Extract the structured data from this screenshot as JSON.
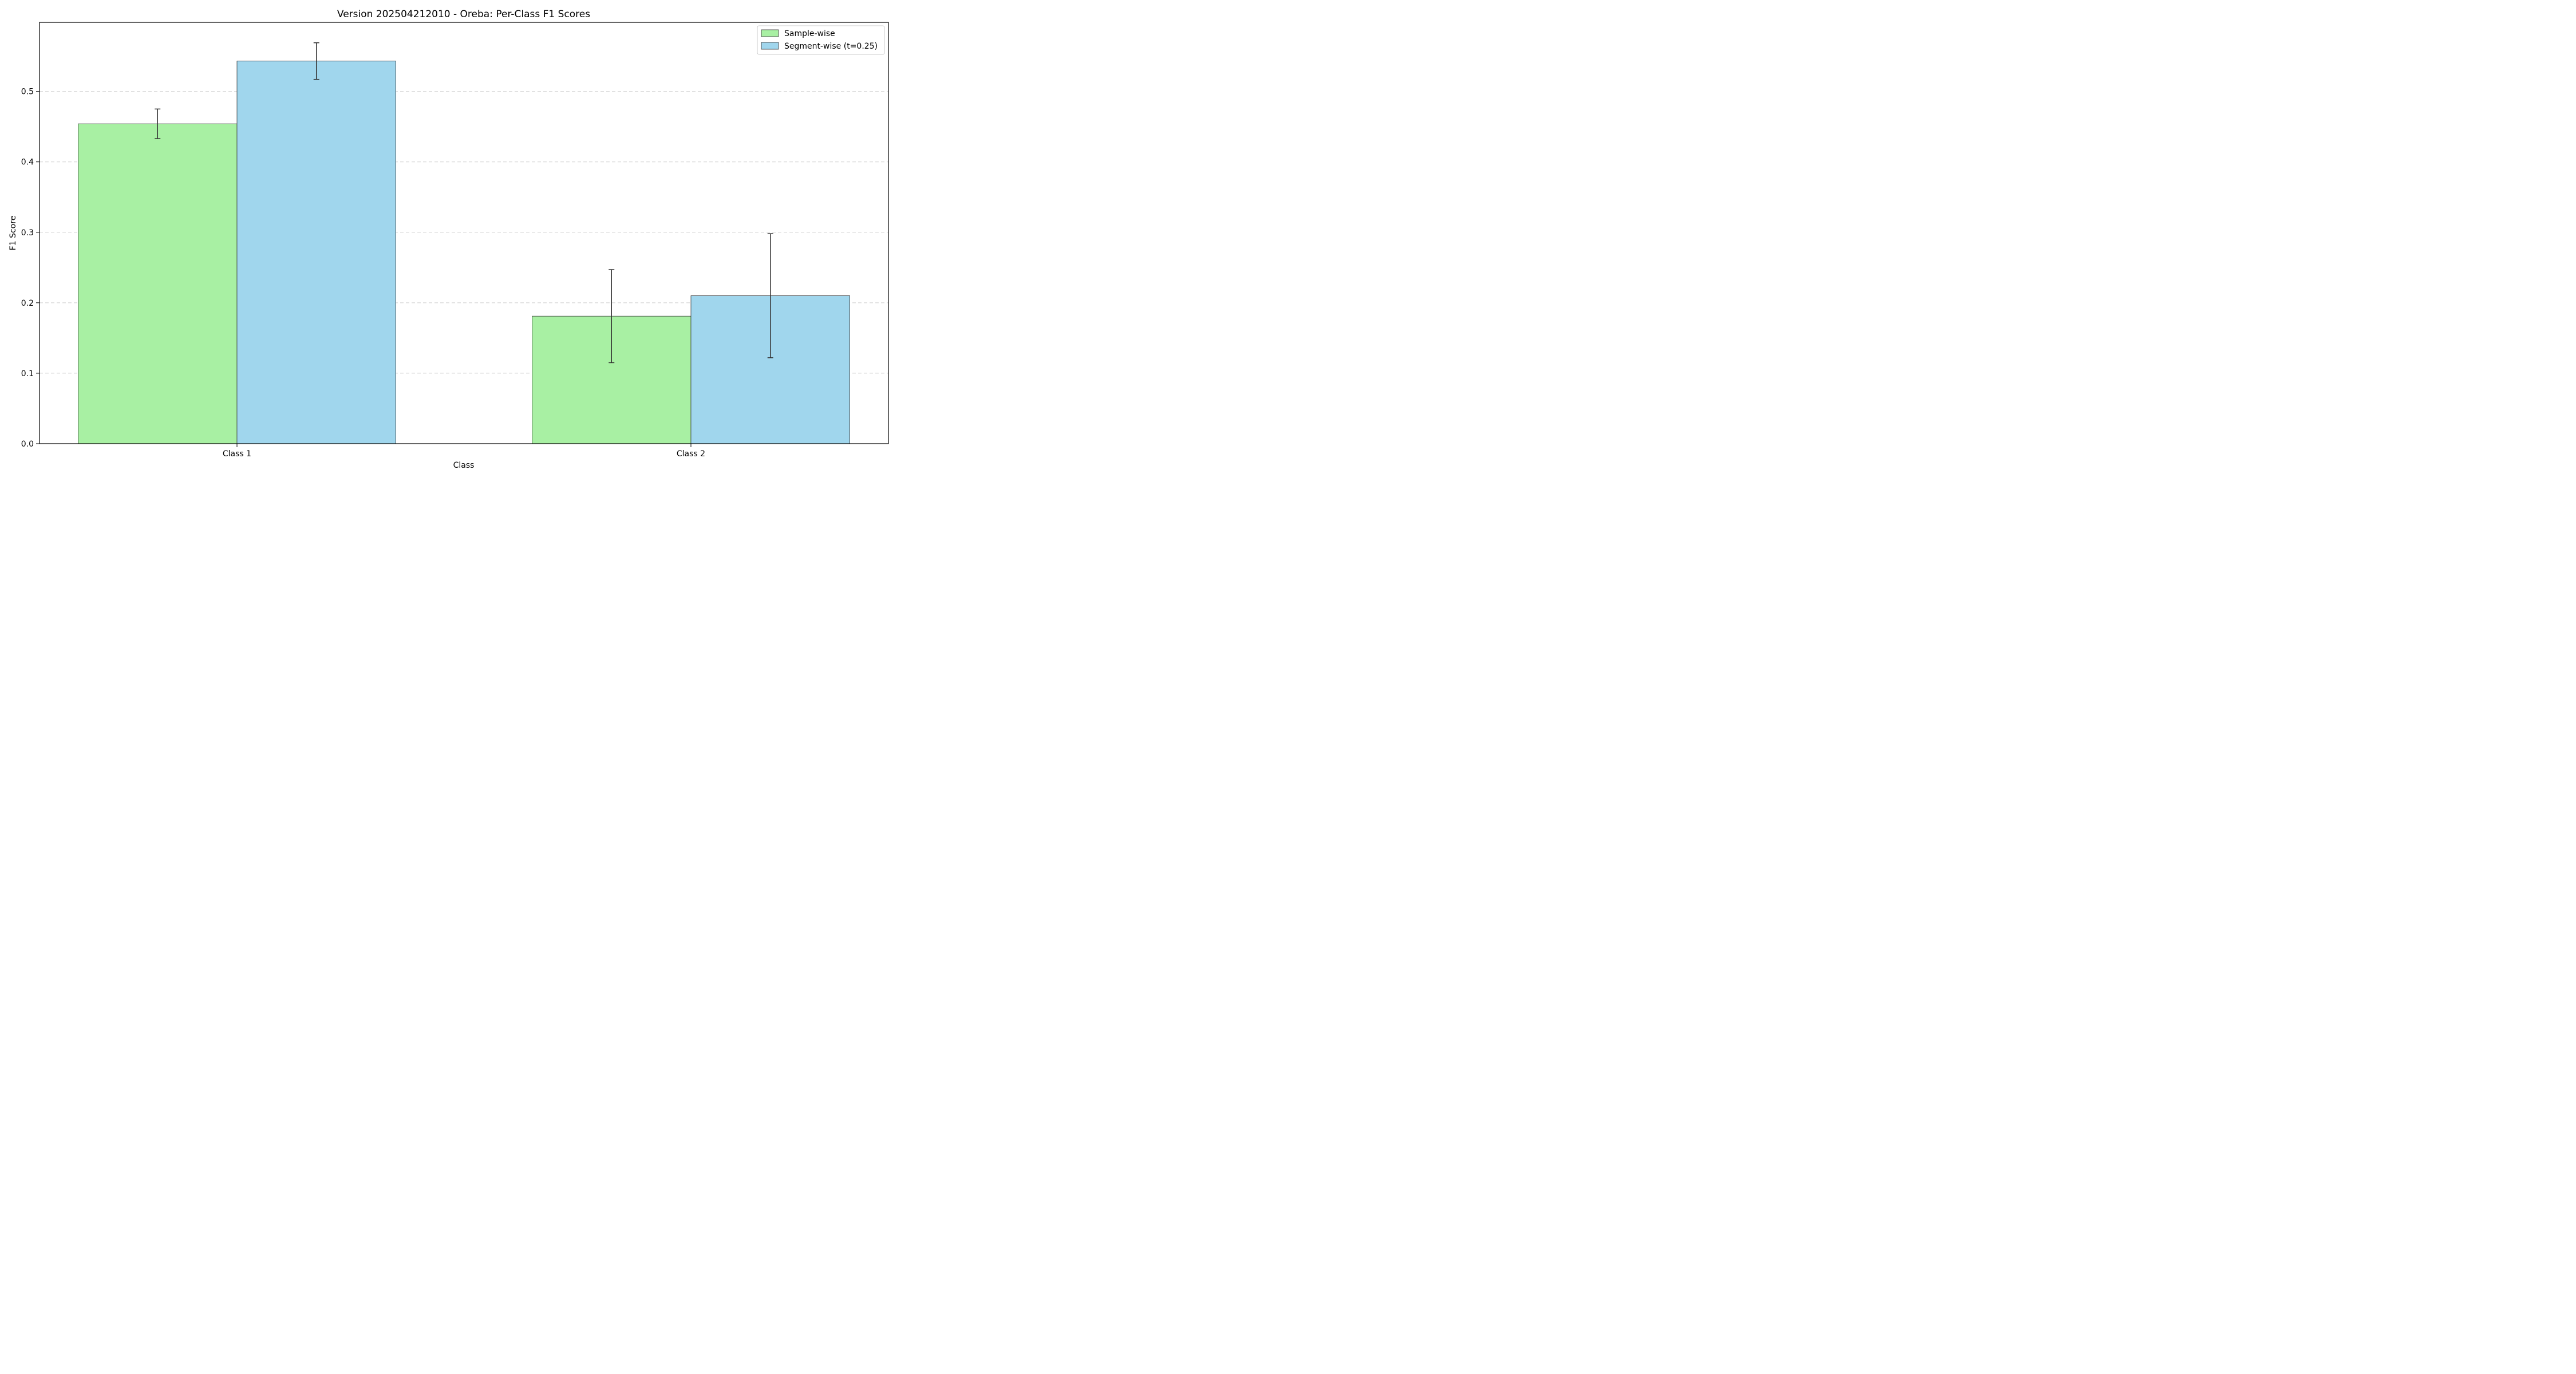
{
  "chart_data": {
    "type": "bar",
    "title": "Version 202504212010 - Oreba: Per-Class F1 Scores",
    "xlabel": "Class",
    "ylabel": "F1 Score",
    "categories": [
      "Class 1",
      "Class 2"
    ],
    "ylim": [
      0,
      0.598
    ],
    "yticks": [
      0.0,
      0.1,
      0.2,
      0.3,
      0.4,
      0.5
    ],
    "ytick_labels": [
      "0.0",
      "0.1",
      "0.2",
      "0.3",
      "0.4",
      "0.5"
    ],
    "grid": "y-dashed",
    "legend_position": "top-right",
    "series": [
      {
        "name": "Sample-wise",
        "color": "#a8f0a3",
        "values": [
          0.454,
          0.181
        ],
        "error": [
          0.021,
          0.066
        ]
      },
      {
        "name": "Segment-wise (t=0.25)",
        "color": "#a0d6ed",
        "values": [
          0.543,
          0.21
        ],
        "error": [
          0.026,
          0.088
        ]
      }
    ]
  }
}
